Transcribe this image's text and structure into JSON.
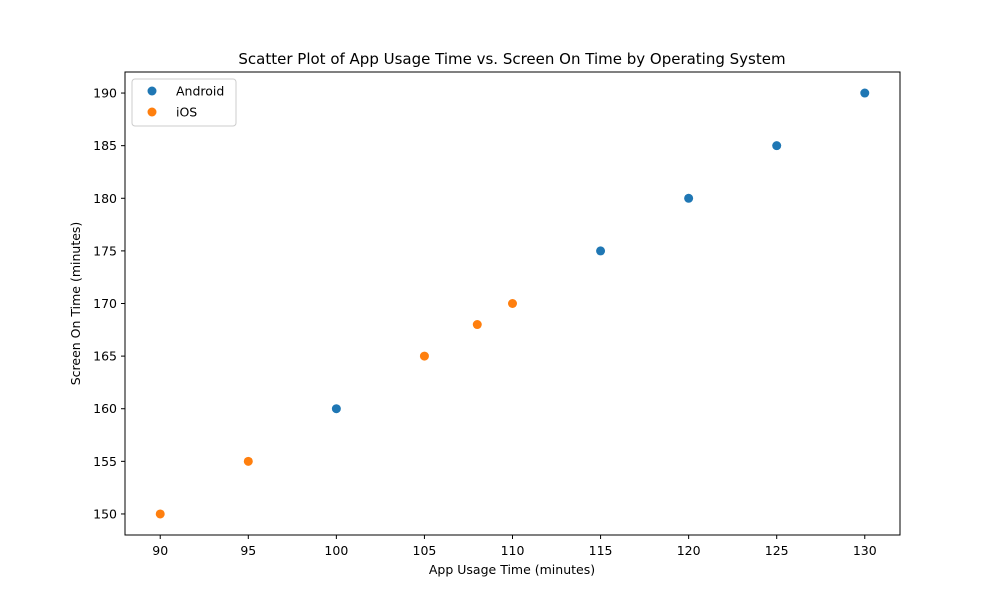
{
  "chart_data": {
    "type": "scatter",
    "title": "Scatter Plot of App Usage Time vs. Screen On Time by Operating System",
    "xlabel": "App Usage Time (minutes)",
    "ylabel": "Screen On Time (minutes)",
    "xlim": [
      88,
      132
    ],
    "ylim": [
      148,
      192
    ],
    "xticks": [
      90,
      95,
      100,
      105,
      110,
      115,
      120,
      125,
      130
    ],
    "yticks": [
      150,
      155,
      160,
      165,
      170,
      175,
      180,
      185,
      190
    ],
    "grid": false,
    "legend_position": "top-left",
    "series": [
      {
        "name": "Android",
        "color": "#1f77b4",
        "points": [
          {
            "x": 100,
            "y": 160
          },
          {
            "x": 115,
            "y": 175
          },
          {
            "x": 120,
            "y": 180
          },
          {
            "x": 125,
            "y": 185
          },
          {
            "x": 130,
            "y": 190
          }
        ]
      },
      {
        "name": "iOS",
        "color": "#ff7f0e",
        "points": [
          {
            "x": 90,
            "y": 150
          },
          {
            "x": 95,
            "y": 155
          },
          {
            "x": 105,
            "y": 165
          },
          {
            "x": 108,
            "y": 168
          },
          {
            "x": 110,
            "y": 170
          }
        ]
      }
    ]
  }
}
